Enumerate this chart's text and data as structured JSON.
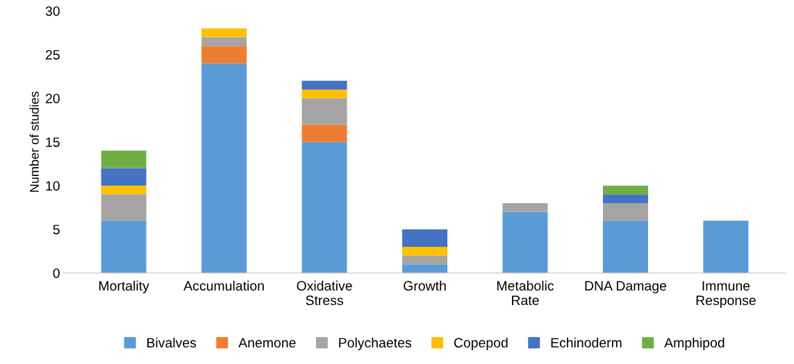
{
  "chart_data": {
    "type": "bar",
    "stacked": true,
    "ylabel": "Number of studies",
    "categories": [
      "Mortality",
      "Accumulation",
      "Oxidative\nStress",
      "Growth",
      "Metabolic\nRate",
      "DNA Damage",
      "Immune\nResponse"
    ],
    "series": [
      {
        "name": "Bivalves",
        "color": "#5b9bd5",
        "values": [
          6,
          24,
          15,
          1,
          7,
          6,
          6
        ]
      },
      {
        "name": "Anemone",
        "color": "#ed7d31",
        "values": [
          null,
          2,
          2,
          null,
          null,
          null,
          null
        ]
      },
      {
        "name": "Polychaetes",
        "color": "#a5a5a5",
        "values": [
          3,
          1,
          3,
          1,
          1,
          2,
          null
        ]
      },
      {
        "name": "Copepod",
        "color": "#ffc000",
        "values": [
          1,
          1,
          1,
          1,
          null,
          null,
          null
        ]
      },
      {
        "name": "Echinoderm",
        "color": "#4472c4",
        "values": [
          2,
          null,
          1,
          2,
          null,
          1,
          null
        ]
      },
      {
        "name": "Amphipod",
        "color": "#70ad47",
        "values": [
          2,
          null,
          null,
          null,
          null,
          1,
          null
        ]
      }
    ],
    "ylim": [
      0,
      30
    ],
    "yticks": [
      0,
      5,
      10,
      15,
      20,
      25,
      30
    ],
    "grid": false,
    "legend": "bottom"
  }
}
